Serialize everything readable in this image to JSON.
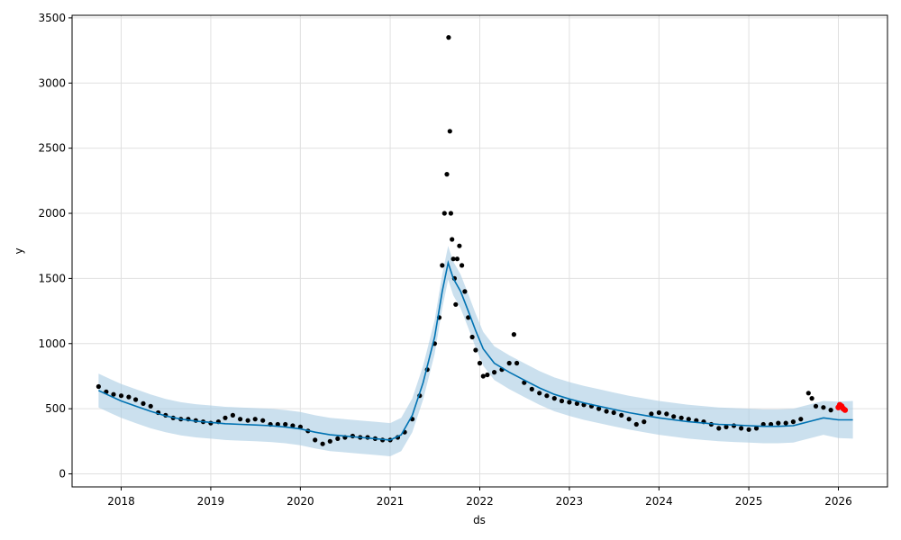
{
  "chart_data": {
    "type": "scatter",
    "xlabel": "ds",
    "ylabel": "y",
    "xlim": [
      "2017-06-15",
      "2026-07-20"
    ],
    "ylim": [
      -100,
      3520
    ],
    "x_ticks": [
      "2018",
      "2019",
      "2020",
      "2021",
      "2022",
      "2023",
      "2024",
      "2025",
      "2026"
    ],
    "y_ticks": [
      0,
      500,
      1000,
      1500,
      2000,
      2500,
      3000,
      3500
    ],
    "grid": true,
    "legend": "none",
    "colors": {
      "observed": "#000000",
      "forecast_line": "#0072B2",
      "uncertainty_band": "#A9CCE3",
      "recent_points": "#FF0000",
      "grid": "#E0E0E0"
    },
    "series": [
      {
        "role": "forecast",
        "x": [
          "2017-10-01",
          "2017-11-15",
          "2018-01-01",
          "2018-03-01",
          "2018-05-01",
          "2018-07-01",
          "2018-09-01",
          "2018-11-01",
          "2019-01-01",
          "2019-03-01",
          "2019-05-01",
          "2019-07-01",
          "2019-09-01",
          "2019-11-01",
          "2020-01-01",
          "2020-03-01",
          "2020-05-01",
          "2020-07-01",
          "2020-09-01",
          "2020-11-01",
          "2021-01-01",
          "2021-02-15",
          "2021-04-01",
          "2021-05-15",
          "2021-07-01",
          "2021-08-01",
          "2021-08-25",
          "2021-09-15",
          "2021-10-15",
          "2021-11-15",
          "2021-12-15",
          "2022-01-15",
          "2022-03-01",
          "2022-05-01",
          "2022-07-01",
          "2022-09-01",
          "2022-11-01",
          "2023-01-01",
          "2023-03-01",
          "2023-05-01",
          "2023-07-01",
          "2023-09-01",
          "2023-11-01",
          "2024-01-01",
          "2024-03-01",
          "2024-05-01",
          "2024-07-01",
          "2024-09-01",
          "2024-11-01",
          "2025-01-01",
          "2025-03-01",
          "2025-05-01",
          "2025-07-01",
          "2025-09-01",
          "2025-11-01",
          "2026-01-01",
          "2026-03-01"
        ],
        "y": [
          640,
          600,
          560,
          520,
          480,
          445,
          420,
          405,
          395,
          385,
          380,
          375,
          370,
          360,
          345,
          320,
          300,
          290,
          280,
          270,
          260,
          300,
          450,
          700,
          1050,
          1400,
          1620,
          1500,
          1400,
          1250,
          1100,
          960,
          850,
          780,
          720,
          660,
          610,
          575,
          545,
          520,
          495,
          470,
          450,
          430,
          415,
          400,
          390,
          380,
          375,
          370,
          365,
          365,
          370,
          400,
          430,
          415,
          415
        ],
        "lower": [
          510,
          470,
          430,
          390,
          350,
          320,
          295,
          280,
          270,
          260,
          255,
          250,
          245,
          235,
          220,
          195,
          175,
          165,
          155,
          145,
          135,
          175,
          320,
          570,
          920,
          1270,
          1490,
          1370,
          1270,
          1120,
          970,
          830,
          720,
          650,
          590,
          530,
          480,
          445,
          415,
          390,
          365,
          340,
          320,
          300,
          285,
          270,
          260,
          250,
          245,
          240,
          235,
          235,
          240,
          270,
          300,
          275,
          270
        ],
        "upper": [
          770,
          730,
          690,
          650,
          610,
          575,
          550,
          535,
          525,
          515,
          510,
          505,
          500,
          490,
          475,
          450,
          430,
          420,
          410,
          400,
          390,
          430,
          580,
          830,
          1180,
          1530,
          1750,
          1630,
          1530,
          1380,
          1230,
          1090,
          980,
          910,
          850,
          790,
          740,
          705,
          675,
          650,
          625,
          600,
          580,
          560,
          545,
          530,
          520,
          510,
          505,
          500,
          495,
          495,
          500,
          530,
          560,
          555,
          560
        ]
      },
      {
        "role": "observed",
        "x": [
          "2017-10-01",
          "2017-11-01",
          "2017-12-01",
          "2018-01-01",
          "2018-02-01",
          "2018-03-01",
          "2018-04-01",
          "2018-05-01",
          "2018-06-01",
          "2018-07-01",
          "2018-08-01",
          "2018-09-01",
          "2018-10-01",
          "2018-11-01",
          "2018-12-01",
          "2019-01-01",
          "2019-02-01",
          "2019-03-01",
          "2019-04-01",
          "2019-05-01",
          "2019-06-01",
          "2019-07-01",
          "2019-08-01",
          "2019-09-01",
          "2019-10-01",
          "2019-11-01",
          "2019-12-01",
          "2020-01-01",
          "2020-02-01",
          "2020-03-01",
          "2020-04-01",
          "2020-05-01",
          "2020-06-01",
          "2020-07-01",
          "2020-08-01",
          "2020-09-01",
          "2020-10-01",
          "2020-11-01",
          "2020-12-01",
          "2021-01-01",
          "2021-02-01",
          "2021-03-01",
          "2021-04-01",
          "2021-05-01",
          "2021-06-01",
          "2021-07-01",
          "2021-07-20",
          "2021-08-01",
          "2021-08-10",
          "2021-08-20",
          "2021-08-27",
          "2021-09-01",
          "2021-09-05",
          "2021-09-10",
          "2021-09-15",
          "2021-09-20",
          "2021-09-25",
          "2021-10-01",
          "2021-10-10",
          "2021-10-20",
          "2021-11-01",
          "2021-11-15",
          "2021-12-01",
          "2021-12-15",
          "2022-01-01",
          "2022-01-15",
          "2022-02-01",
          "2022-03-01",
          "2022-04-01",
          "2022-05-01",
          "2022-05-20",
          "2022-06-01",
          "2022-07-01",
          "2022-08-01",
          "2022-09-01",
          "2022-10-01",
          "2022-11-01",
          "2022-12-01",
          "2023-01-01",
          "2023-02-01",
          "2023-03-01",
          "2023-04-01",
          "2023-05-01",
          "2023-06-01",
          "2023-07-01",
          "2023-08-01",
          "2023-09-01",
          "2023-10-01",
          "2023-11-01",
          "2023-12-01",
          "2024-01-01",
          "2024-02-01",
          "2024-03-01",
          "2024-04-01",
          "2024-05-01",
          "2024-06-01",
          "2024-07-01",
          "2024-08-01",
          "2024-09-01",
          "2024-10-01",
          "2024-11-01",
          "2024-12-01",
          "2025-01-01",
          "2025-02-01",
          "2025-03-01",
          "2025-04-01",
          "2025-05-01",
          "2025-06-01",
          "2025-07-01",
          "2025-08-01",
          "2025-09-01",
          "2025-09-15",
          "2025-10-01",
          "2025-11-01",
          "2025-12-01"
        ],
        "y": [
          670,
          630,
          610,
          600,
          590,
          570,
          540,
          520,
          470,
          450,
          430,
          420,
          420,
          410,
          400,
          390,
          400,
          430,
          450,
          420,
          410,
          420,
          410,
          380,
          380,
          380,
          370,
          360,
          330,
          260,
          230,
          250,
          270,
          280,
          290,
          280,
          280,
          270,
          260,
          260,
          280,
          320,
          420,
          600,
          800,
          1000,
          1200,
          1600,
          2000,
          2300,
          3350,
          2630,
          2000,
          1800,
          1650,
          1500,
          1300,
          1650,
          1750,
          1600,
          1400,
          1200,
          1050,
          950,
          850,
          750,
          760,
          780,
          800,
          850,
          1070,
          850,
          700,
          650,
          620,
          600,
          580,
          560,
          550,
          540,
          530,
          520,
          500,
          480,
          470,
          450,
          420,
          380,
          400,
          460,
          470,
          460,
          440,
          430,
          420,
          410,
          400,
          380,
          350,
          360,
          370,
          350,
          340,
          350,
          380,
          380,
          390,
          390,
          400,
          420,
          620,
          580,
          520,
          510,
          490
        ]
      },
      {
        "role": "recent",
        "x": [
          "2026-01-01",
          "2026-01-07",
          "2026-01-14",
          "2026-01-21",
          "2026-01-28"
        ],
        "y": [
          510,
          530,
          520,
          500,
          490
        ]
      }
    ]
  }
}
